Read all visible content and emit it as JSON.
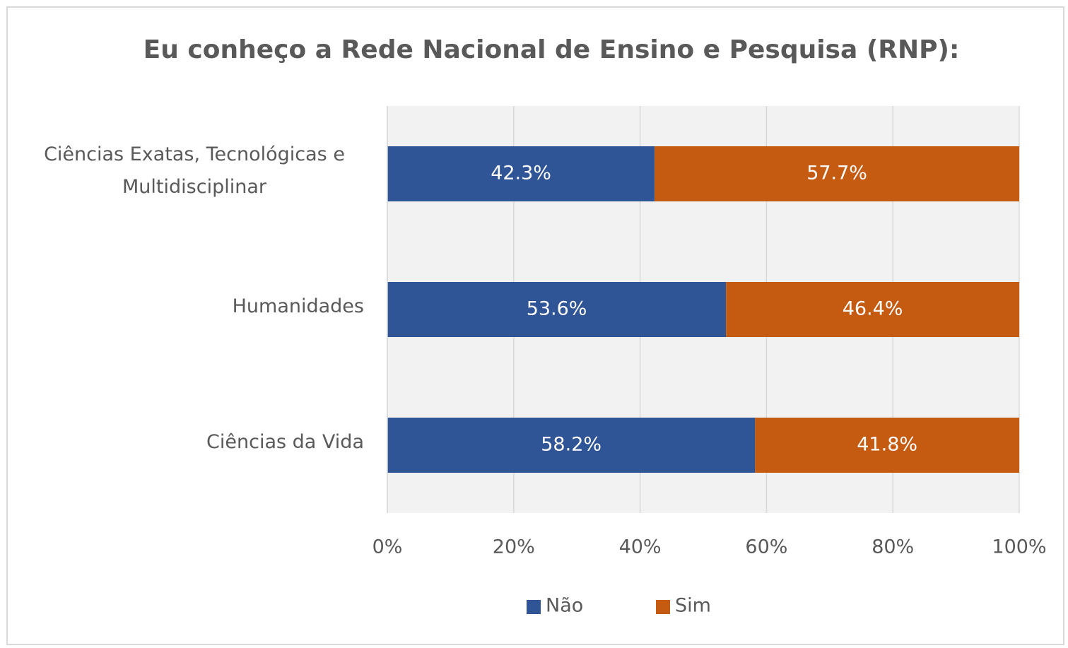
{
  "chart_data": {
    "type": "stacked_bar_horizontal",
    "title": "Eu conheço a Rede Nacional de Ensino e Pesquisa (RNP):",
    "categories": [
      "Ciências Exatas, Tecnológicas e Multidisciplinar",
      "Humanidades",
      "Ciências da Vida"
    ],
    "series": [
      {
        "name": "Não",
        "color": "#2f5597",
        "values": [
          42.3,
          53.6,
          58.2
        ],
        "value_labels": [
          "42.3%",
          "53.6%",
          "58.2%"
        ]
      },
      {
        "name": "Sim",
        "color": "#c55a11",
        "values": [
          57.7,
          46.4,
          41.8
        ],
        "value_labels": [
          "57.7%",
          "46.4%",
          "41.8%"
        ]
      }
    ],
    "xlim": [
      0,
      100
    ],
    "xticks": [
      {
        "value": 0,
        "label": "0%"
      },
      {
        "value": 20,
        "label": "20%"
      },
      {
        "value": 40,
        "label": "40%"
      },
      {
        "value": 60,
        "label": "60%"
      },
      {
        "value": 80,
        "label": "80%"
      },
      {
        "value": 100,
        "label": "100%"
      }
    ],
    "grid": true,
    "legend": "bottom"
  }
}
